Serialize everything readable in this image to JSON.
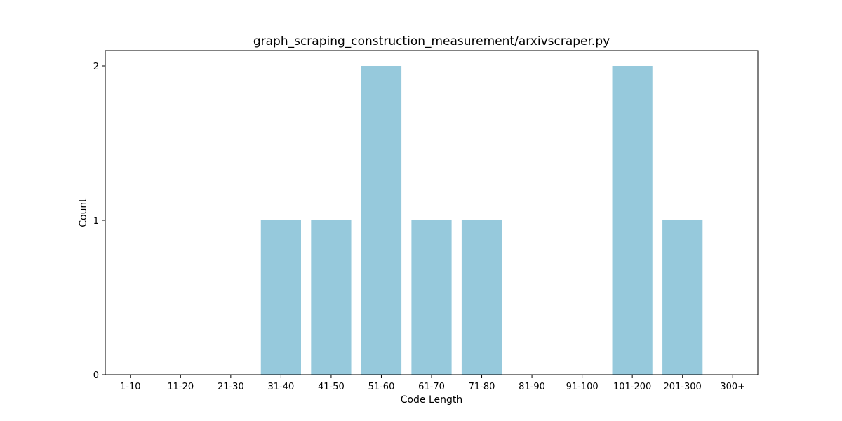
{
  "chart_data": {
    "type": "bar",
    "title": "graph_scraping_construction_measurement/arxivscraper.py",
    "xlabel": "Code Length",
    "ylabel": "Count",
    "categories": [
      "1-10",
      "11-20",
      "21-30",
      "31-40",
      "41-50",
      "51-60",
      "61-70",
      "71-80",
      "81-90",
      "91-100",
      "101-200",
      "201-300",
      "300+"
    ],
    "values": [
      0,
      0,
      0,
      1,
      1,
      2,
      1,
      1,
      0,
      0,
      2,
      1,
      0
    ],
    "ylim": [
      0,
      2.1
    ],
    "yticks": [
      0,
      1,
      2
    ],
    "grid": false,
    "bar_color": "#96c9dc"
  }
}
